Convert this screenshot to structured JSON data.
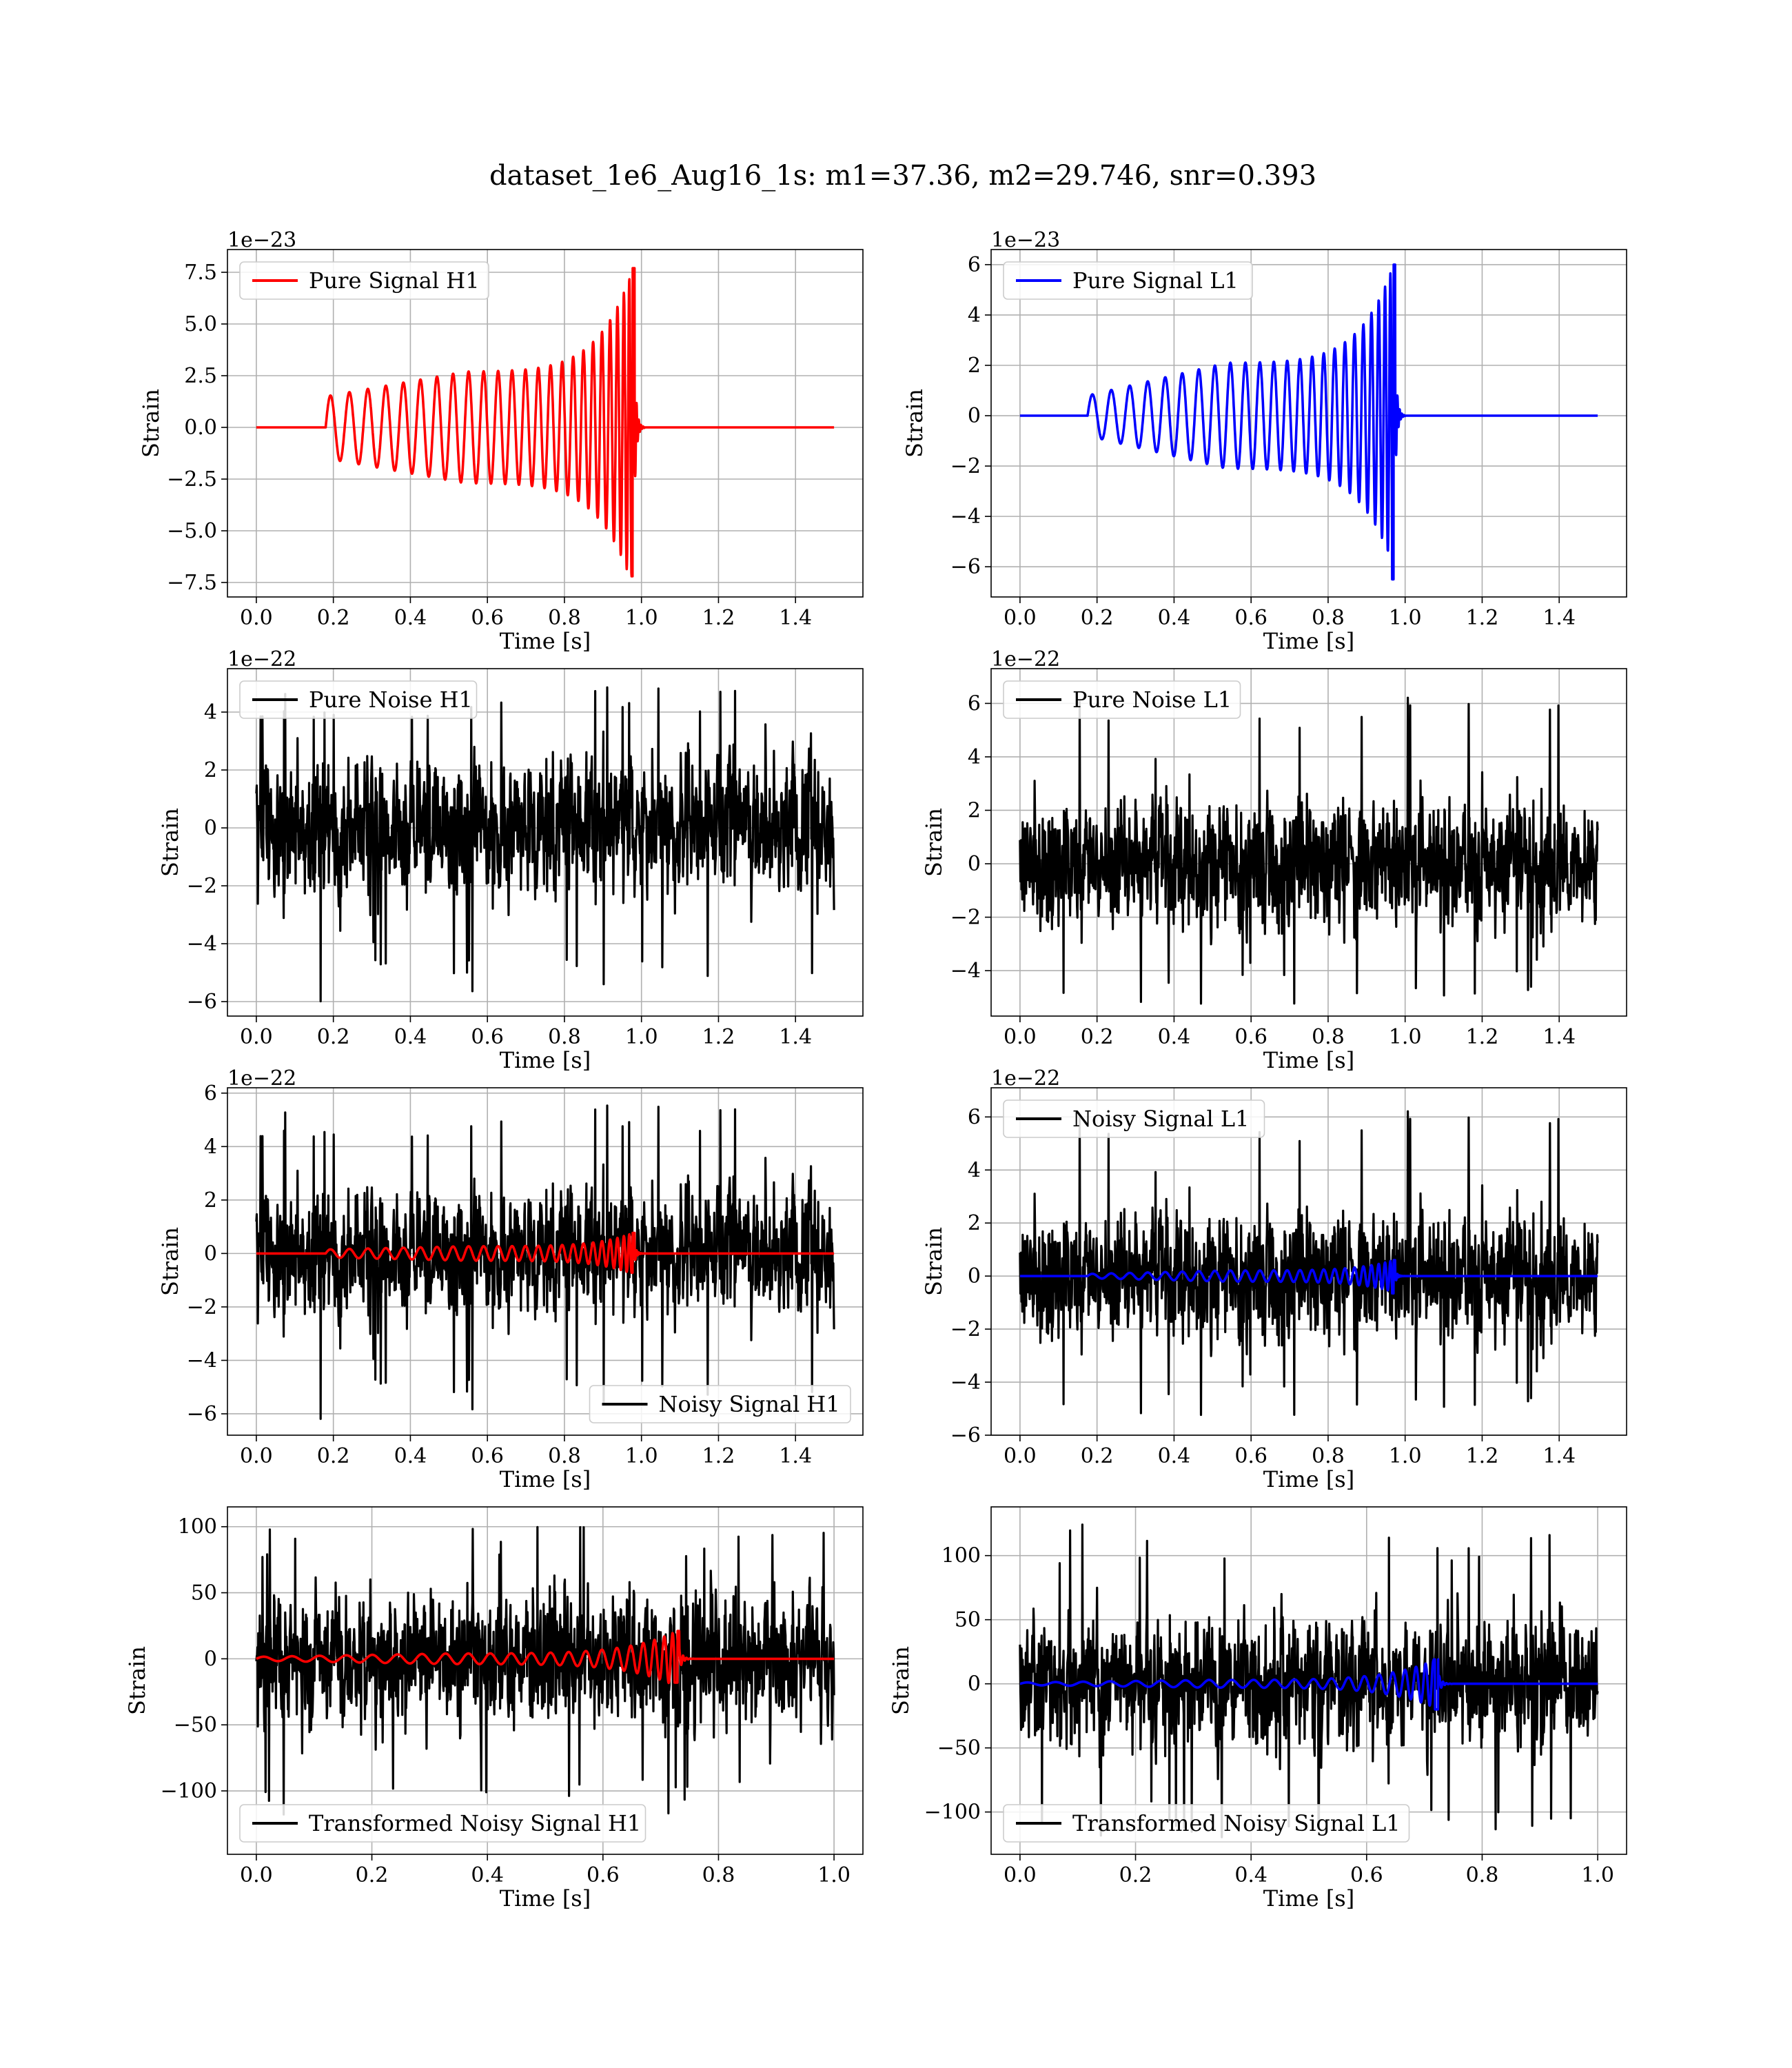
{
  "suptitle": "dataset_1e6_Aug16_1s: m1=37.36, m2=29.746, snr=0.393",
  "colors": {
    "h1": "#ff0000",
    "l1": "#0000ff",
    "noise": "#000000",
    "grid": "#b0b0b0"
  },
  "chart_data": [
    {
      "id": "pure-signal-h1",
      "type": "line",
      "xlabel": "Time [s]",
      "ylabel": "Strain",
      "offset_text": "1e−23",
      "xlim": [
        -0.075,
        1.575
      ],
      "ylim": [
        -8.2,
        8.6
      ],
      "xticks": [
        0.0,
        0.2,
        0.4,
        0.6,
        0.8,
        1.0,
        1.2,
        1.4
      ],
      "xticklabels": [
        "0.0",
        "0.2",
        "0.4",
        "0.6",
        "0.8",
        "1.0",
        "1.2",
        "1.4"
      ],
      "yticks": [
        -7.5,
        -5.0,
        -2.5,
        0.0,
        2.5,
        5.0,
        7.5
      ],
      "yticklabels": [
        "−7.5",
        "−5.0",
        "−2.5",
        "0.0",
        "2.5",
        "5.0",
        "7.5"
      ],
      "grid": true,
      "legend_position": "upper left",
      "series": [
        {
          "name": "Pure Signal H1",
          "color": "#ff0000",
          "kind": "chirp",
          "x_range": [
            0.0,
            1.5
          ],
          "t_start": 0.18,
          "t_merge": 0.978,
          "amp_start": 1.5,
          "amp_mid": 2.7,
          "amp_peak": 7.7,
          "amp_trough": -7.2
        }
      ]
    },
    {
      "id": "pure-signal-l1",
      "type": "line",
      "xlabel": "Time [s]",
      "ylabel": "Strain",
      "offset_text": "1e−23",
      "xlim": [
        -0.075,
        1.575
      ],
      "ylim": [
        -7.2,
        6.6
      ],
      "xticks": [
        0.0,
        0.2,
        0.4,
        0.6,
        0.8,
        1.0,
        1.2,
        1.4
      ],
      "xticklabels": [
        "0.0",
        "0.2",
        "0.4",
        "0.6",
        "0.8",
        "1.0",
        "1.2",
        "1.4"
      ],
      "yticks": [
        -6,
        -4,
        -2,
        0,
        2,
        4,
        6
      ],
      "yticklabels": [
        "−6",
        "−4",
        "−2",
        "0",
        "2",
        "4",
        "6"
      ],
      "grid": true,
      "legend_position": "upper left",
      "series": [
        {
          "name": "Pure Signal L1",
          "color": "#0000ff",
          "kind": "chirp",
          "x_range": [
            0.0,
            1.5
          ],
          "t_start": 0.175,
          "t_merge": 0.97,
          "amp_start": 0.8,
          "amp_mid": 2.1,
          "amp_peak": 6.0,
          "amp_trough": -6.5
        }
      ]
    },
    {
      "id": "pure-noise-h1",
      "type": "line",
      "xlabel": "Time [s]",
      "ylabel": "Strain",
      "offset_text": "1e−22",
      "xlim": [
        -0.075,
        1.575
      ],
      "ylim": [
        -6.5,
        5.5
      ],
      "xticks": [
        0.0,
        0.2,
        0.4,
        0.6,
        0.8,
        1.0,
        1.2,
        1.4
      ],
      "xticklabels": [
        "0.0",
        "0.2",
        "0.4",
        "0.6",
        "0.8",
        "1.0",
        "1.2",
        "1.4"
      ],
      "yticks": [
        -6,
        -4,
        -2,
        0,
        2,
        4
      ],
      "yticklabels": [
        "−6",
        "−4",
        "−2",
        "0",
        "2",
        "4"
      ],
      "grid": true,
      "legend_position": "upper left",
      "series": [
        {
          "name": "Pure Noise H1",
          "color": "#000000",
          "kind": "noise",
          "x_range": [
            0.0,
            1.5
          ],
          "sigma": 1.3,
          "min": -6.0,
          "max": 5.0,
          "seed": 11
        }
      ]
    },
    {
      "id": "pure-noise-l1",
      "type": "line",
      "xlabel": "Time [s]",
      "ylabel": "Strain",
      "offset_text": "1e−22",
      "xlim": [
        -0.075,
        1.575
      ],
      "ylim": [
        -5.7,
        7.3
      ],
      "xticks": [
        0.0,
        0.2,
        0.4,
        0.6,
        0.8,
        1.0,
        1.2,
        1.4
      ],
      "xticklabels": [
        "0.0",
        "0.2",
        "0.4",
        "0.6",
        "0.8",
        "1.0",
        "1.2",
        "1.4"
      ],
      "yticks": [
        -4,
        -2,
        0,
        2,
        4,
        6
      ],
      "yticklabels": [
        "−4",
        "−2",
        "0",
        "2",
        "4",
        "6"
      ],
      "grid": true,
      "legend_position": "upper left",
      "series": [
        {
          "name": "Pure Noise L1",
          "color": "#000000",
          "kind": "noise",
          "x_range": [
            0.0,
            1.5
          ],
          "sigma": 1.3,
          "min": -5.3,
          "max": 6.5,
          "seed": 23
        }
      ]
    },
    {
      "id": "noisy-signal-h1",
      "type": "line",
      "xlabel": "Time [s]",
      "ylabel": "Strain",
      "offset_text": "1e−22",
      "xlim": [
        -0.075,
        1.575
      ],
      "ylim": [
        -6.8,
        6.2
      ],
      "xticks": [
        0.0,
        0.2,
        0.4,
        0.6,
        0.8,
        1.0,
        1.2,
        1.4
      ],
      "xticklabels": [
        "0.0",
        "0.2",
        "0.4",
        "0.6",
        "0.8",
        "1.0",
        "1.2",
        "1.4"
      ],
      "yticks": [
        -6,
        -4,
        -2,
        0,
        2,
        4,
        6
      ],
      "yticklabels": [
        "−6",
        "−4",
        "−2",
        "0",
        "2",
        "4",
        "6"
      ],
      "grid": true,
      "legend_position": "lower right",
      "series": [
        {
          "name": "Noisy Signal H1",
          "color": "#000000",
          "kind": "noise",
          "x_range": [
            0.0,
            1.5
          ],
          "sigma": 1.3,
          "min": -6.2,
          "max": 5.7,
          "seed": 11
        },
        {
          "name": "",
          "color": "#ff0000",
          "kind": "chirp",
          "x_range": [
            0.0,
            1.5
          ],
          "t_start": 0.18,
          "t_merge": 0.978,
          "amp_start": 0.15,
          "amp_mid": 0.27,
          "amp_peak": 0.77,
          "amp_trough": -0.72
        }
      ]
    },
    {
      "id": "noisy-signal-l1",
      "type": "line",
      "xlabel": "Time [s]",
      "ylabel": "Strain",
      "offset_text": "1e−22",
      "xlim": [
        -0.075,
        1.575
      ],
      "ylim": [
        -6.0,
        7.1
      ],
      "xticks": [
        0.0,
        0.2,
        0.4,
        0.6,
        0.8,
        1.0,
        1.2,
        1.4
      ],
      "xticklabels": [
        "0.0",
        "0.2",
        "0.4",
        "0.6",
        "0.8",
        "1.0",
        "1.2",
        "1.4"
      ],
      "yticks": [
        -6,
        -4,
        -2,
        0,
        2,
        4,
        6
      ],
      "yticklabels": [
        "−6",
        "−4",
        "−2",
        "0",
        "2",
        "4",
        "6"
      ],
      "grid": true,
      "legend_position": "upper left",
      "series": [
        {
          "name": "Noisy Signal L1",
          "color": "#000000",
          "kind": "noise",
          "x_range": [
            0.0,
            1.5
          ],
          "sigma": 1.3,
          "min": -5.3,
          "max": 6.5,
          "seed": 23
        },
        {
          "name": "",
          "color": "#0000ff",
          "kind": "chirp",
          "x_range": [
            0.0,
            1.5
          ],
          "t_start": 0.175,
          "t_merge": 0.97,
          "amp_start": 0.08,
          "amp_mid": 0.21,
          "amp_peak": 0.6,
          "amp_trough": -0.65
        }
      ]
    },
    {
      "id": "transformed-noisy-signal-h1",
      "type": "line",
      "xlabel": "Time [s]",
      "ylabel": "Strain",
      "offset_text": "",
      "xlim": [
        -0.05,
        1.05
      ],
      "ylim": [
        -148,
        115
      ],
      "xticks": [
        0.0,
        0.2,
        0.4,
        0.6,
        0.8,
        1.0
      ],
      "xticklabels": [
        "0.0",
        "0.2",
        "0.4",
        "0.6",
        "0.8",
        "1.0"
      ],
      "yticks": [
        -100,
        -50,
        0,
        50,
        100
      ],
      "yticklabels": [
        "−100",
        "−50",
        "0",
        "50",
        "100"
      ],
      "grid": true,
      "legend_position": "lower left",
      "series": [
        {
          "name": "Transformed Noisy Signal H1",
          "color": "#000000",
          "kind": "noise",
          "x_range": [
            0.0,
            1.0
          ],
          "sigma": 28,
          "min": -120,
          "max": 100,
          "seed": 37
        },
        {
          "name": "",
          "color": "#ff0000",
          "kind": "chirp",
          "x_range": [
            0.0,
            1.0
          ],
          "t_start": 0.0,
          "t_merge": 0.728,
          "amp_start": 1.5,
          "amp_mid": 4,
          "amp_peak": 21,
          "amp_trough": -18
        }
      ]
    },
    {
      "id": "transformed-noisy-signal-l1",
      "type": "line",
      "xlabel": "Time [s]",
      "ylabel": "Strain",
      "offset_text": "",
      "xlim": [
        -0.05,
        1.05
      ],
      "ylim": [
        -133,
        138
      ],
      "xticks": [
        0.0,
        0.2,
        0.4,
        0.6,
        0.8,
        1.0
      ],
      "xticklabels": [
        "0.0",
        "0.2",
        "0.4",
        "0.6",
        "0.8",
        "1.0"
      ],
      "yticks": [
        -100,
        -50,
        0,
        50,
        100
      ],
      "yticklabels": [
        "−100",
        "−50",
        "0",
        "50",
        "100"
      ],
      "grid": true,
      "legend_position": "lower left",
      "series": [
        {
          "name": "Transformed Noisy Signal L1",
          "color": "#000000",
          "kind": "noise",
          "x_range": [
            0.0,
            1.0
          ],
          "sigma": 28,
          "min": -122,
          "max": 125,
          "seed": 41
        },
        {
          "name": "",
          "color": "#0000ff",
          "kind": "chirp",
          "x_range": [
            0.0,
            1.0
          ],
          "t_start": 0.0,
          "t_merge": 0.72,
          "amp_start": 1.0,
          "amp_mid": 3,
          "amp_peak": 19,
          "amp_trough": -20
        }
      ]
    }
  ]
}
